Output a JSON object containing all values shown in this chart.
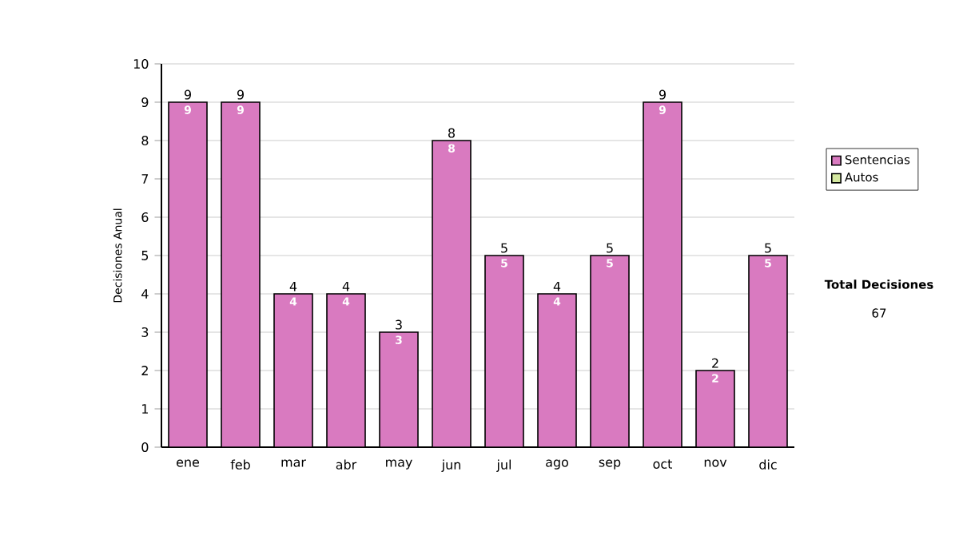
{
  "chart_data": {
    "type": "bar",
    "ylabel": "Decisiones Anual",
    "categories": [
      "ene",
      "feb",
      "mar",
      "abr",
      "may",
      "jun",
      "jul",
      "ago",
      "sep",
      "oct",
      "nov",
      "dic"
    ],
    "stacked": true,
    "series": [
      {
        "name": "Sentencias",
        "color": "#d97ac0",
        "values": [
          9,
          9,
          4,
          4,
          3,
          8,
          5,
          4,
          5,
          9,
          2,
          5
        ],
        "value_labels": [
          "9",
          "9",
          "4",
          "4",
          "3",
          "8",
          "5",
          "4",
          "5",
          "9",
          "2",
          "5"
        ]
      },
      {
        "name": "Autos",
        "color": "#d4e8a0",
        "values": [
          0,
          0,
          0,
          0,
          0,
          0,
          0,
          0,
          0,
          0,
          0,
          0
        ]
      }
    ],
    "totals": [
      "9",
      "9",
      "4",
      "4",
      "3",
      "8",
      "5",
      "4",
      "5",
      "9",
      "2",
      "5"
    ],
    "ylim": [
      0,
      10
    ],
    "yticks": [
      0,
      1,
      2,
      3,
      4,
      5,
      6,
      7,
      8,
      9,
      10
    ],
    "grid": "y",
    "legend": "right",
    "annotations": [
      "Total Decisiones",
      "67"
    ]
  }
}
